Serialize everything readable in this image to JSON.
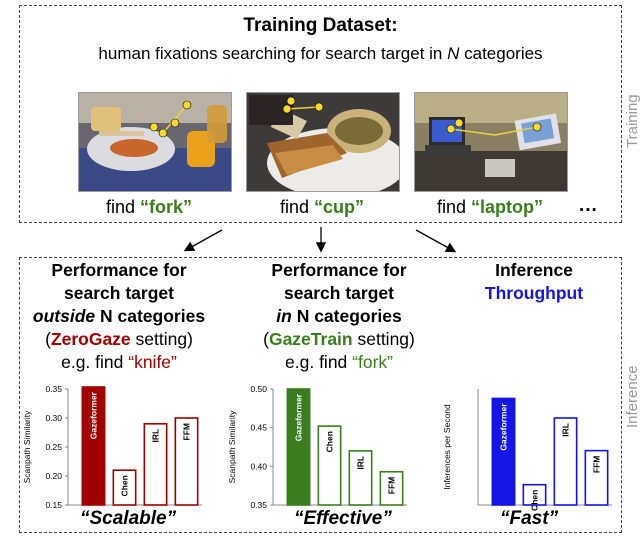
{
  "training": {
    "title": "Training Dataset:",
    "subtitle_prefix": "human fixations searching for search target in ",
    "subtitle_var": "N",
    "subtitle_suffix": " categories",
    "find_word": "find",
    "targets": [
      "“fork”",
      "“cup”",
      "“laptop”"
    ],
    "ellipsis": "...",
    "side_label": "Training"
  },
  "inference": {
    "side_label": "Inference"
  },
  "panels": {
    "zero": {
      "line1": "Performance for",
      "line2": "search target",
      "line3_em": "outside",
      "line3_rest": " N categories",
      "setting_open": "(",
      "setting_name": "ZeroGaze",
      "setting_close": " setting)",
      "example_prefix": "e.g. find ",
      "example_target": "“knife”",
      "slogan": "“Scalable”"
    },
    "train": {
      "line1": "Performance for",
      "line2": "search target",
      "line3_em": "in",
      "line3_rest": " N categories",
      "setting_open": "(",
      "setting_name": "GazeTrain",
      "setting_close": " setting)",
      "example_prefix": "e.g. find ",
      "example_target": "“fork”",
      "slogan": "“Effective”"
    },
    "infer": {
      "line1": "Inference",
      "line2": "Throughput",
      "slogan": "“Fast”"
    }
  },
  "colors": {
    "red": "#a00000",
    "green": "#3a7d1e",
    "blue": "#1515e6"
  },
  "chart_data": [
    {
      "type": "bar",
      "ylabel": "Scanpath Similarity",
      "ylim": [
        0.15,
        0.35
      ],
      "yticks": [
        "0.15",
        "0.20",
        "0.25",
        "0.30",
        "0.35"
      ],
      "categories": [
        "Gazeformer",
        "Chen",
        "IRL",
        "FFM"
      ],
      "values": [
        0.355,
        0.21,
        0.29,
        0.3
      ],
      "highlight_color": "#a00000"
    },
    {
      "type": "bar",
      "ylabel": "Scanpath Similarity",
      "ylim": [
        0.35,
        0.5
      ],
      "yticks": [
        "0.35",
        "0.40",
        "0.45",
        "0.50"
      ],
      "categories": [
        "Gazeformer",
        "Chen",
        "IRL",
        "FFM"
      ],
      "values": [
        0.5,
        0.452,
        0.42,
        0.393
      ],
      "highlight_color": "#3a7d1e"
    },
    {
      "type": "bar",
      "ylabel": "Inferences per Second",
      "ylim": [
        0,
        16
      ],
      "yticks": [],
      "categories": [
        "Gazeformer",
        "Chen",
        "IRL",
        "FFM"
      ],
      "values": [
        14.7,
        2.8,
        12.0,
        7.5
      ],
      "highlight_color": "#1515e6"
    }
  ]
}
